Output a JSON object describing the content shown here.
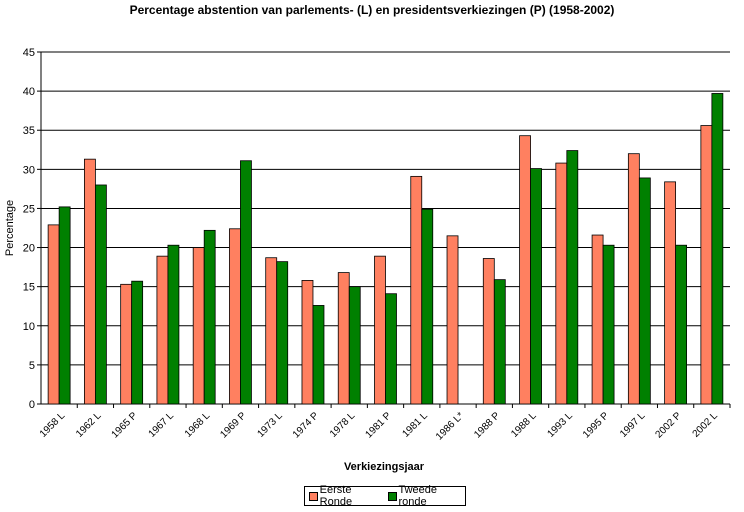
{
  "chart_data": {
    "type": "bar",
    "title": "Percentage abstention van parlements- (L) en presidentsverkiezingen (P) (1958-2002)",
    "xlabel": "Verkiezingsjaar",
    "ylabel": "Percentage",
    "ylim": [
      0,
      45
    ],
    "yticks": [
      "0",
      "5",
      "10",
      "15",
      "20",
      "25",
      "30",
      "35",
      "40",
      "45"
    ],
    "grid": true,
    "legend_position": "bottom",
    "categories": [
      "1958 L",
      "1962 L",
      "1965 P",
      "1967 L",
      "1968 L",
      "1969 P",
      "1973 L",
      "1974 P",
      "1978 L",
      "1981 P",
      "1981 L",
      "1986 L*",
      "1988 P",
      "1988 L",
      "1993 L",
      "1995 P",
      "1997 L",
      "2002 P",
      "2002 L"
    ],
    "series": [
      {
        "name": "Eerste Ronde",
        "color": "#FF8060",
        "values": [
          22.9,
          31.3,
          15.3,
          18.9,
          20.0,
          22.4,
          18.7,
          15.8,
          16.8,
          18.9,
          29.1,
          21.5,
          18.6,
          34.3,
          30.8,
          21.6,
          32.0,
          28.4,
          35.6
        ]
      },
      {
        "name": "Tweede ronde",
        "color": "#008000",
        "values": [
          25.2,
          28.0,
          15.7,
          20.3,
          22.2,
          31.1,
          18.2,
          12.6,
          15.0,
          14.1,
          24.9,
          null,
          15.9,
          30.1,
          32.4,
          20.3,
          28.9,
          20.3,
          39.7
        ]
      }
    ]
  }
}
